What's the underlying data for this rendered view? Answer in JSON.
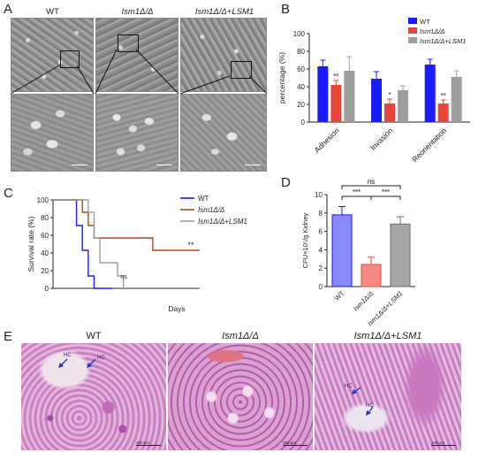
{
  "panels": {
    "a": "A",
    "b": "B",
    "c": "C",
    "d": "D",
    "e": "E"
  },
  "panelA": {
    "labels": [
      "WT",
      "Ism1Δ/Δ",
      "Ism1Δ/Δ+LSM1"
    ]
  },
  "panelE": {
    "labels": [
      "WT",
      "Ism1Δ/Δ",
      "Ism1Δ/Δ+LSM1"
    ],
    "hc_label": "HC",
    "scale_bar": "100 µm"
  },
  "colors": {
    "wt": "#1b1bff",
    "mut": "#e8463a",
    "comp": "#9e9e9e",
    "d_wt": "#8a8aff",
    "d_mut": "#f48a84",
    "d_comp": "#a6a6a6",
    "c_mut": "#b5451b"
  },
  "chart_data": [
    {
      "id": "B",
      "type": "bar",
      "ylabel": "percentage (%)",
      "ylim": [
        0,
        100
      ],
      "yticks": [
        "0",
        "20",
        "40",
        "60",
        "80",
        "100"
      ],
      "categories": [
        "Adhesion",
        "Invasion",
        "Reorientation"
      ],
      "series": [
        {
          "name": "WT",
          "values": [
            63,
            49,
            65
          ],
          "err": [
            7,
            8,
            6
          ]
        },
        {
          "name": "Ism1Δ/Δ",
          "values": [
            42,
            21,
            21
          ],
          "err": [
            5,
            5,
            4
          ]
        },
        {
          "name": "Ism1Δ/Δ+LSM1",
          "values": [
            58,
            36,
            51
          ],
          "err": [
            16,
            5,
            7
          ]
        }
      ],
      "annotations": [
        "**",
        "*",
        "**"
      ],
      "legend": "top-right"
    },
    {
      "id": "C",
      "type": "line",
      "xlabel": "Days",
      "ylabel": "Survival rate (%)",
      "ylim": [
        0,
        100
      ],
      "xlim": [
        0,
        25
      ],
      "yticks": [
        "0",
        "20",
        "40",
        "60",
        "80",
        "100"
      ],
      "series": [
        {
          "name": "WT",
          "x": [
            0,
            4,
            5,
            6,
            7,
            10
          ],
          "y": [
            100,
            71,
            43,
            14,
            0,
            0
          ]
        },
        {
          "name": "Ism1Δ/Δ",
          "x": [
            0,
            5,
            6,
            7,
            10,
            17,
            25
          ],
          "y": [
            100,
            86,
            71,
            57,
            57,
            43,
            43
          ]
        },
        {
          "name": "Ism1Δ/Δ+LSM1",
          "x": [
            0,
            6,
            7,
            8,
            11,
            12
          ],
          "y": [
            100,
            86,
            57,
            29,
            14,
            0
          ]
        }
      ],
      "annotations": [
        "**",
        "ns"
      ],
      "legend": "top-right"
    },
    {
      "id": "D",
      "type": "bar",
      "ylabel": "CFU×10⁵/g Kidney",
      "ylim": [
        0,
        10
      ],
      "yticks": [
        "0",
        "2",
        "4",
        "6",
        "8",
        "10"
      ],
      "categories": [
        "WT",
        "Ism1Δ/Δ",
        "Ism1Δ/Δ+LSM1"
      ],
      "values": [
        7.8,
        2.4,
        6.8
      ],
      "err": [
        0.9,
        0.8,
        0.8
      ],
      "annotations": [
        "***",
        "***",
        "ns"
      ]
    }
  ]
}
